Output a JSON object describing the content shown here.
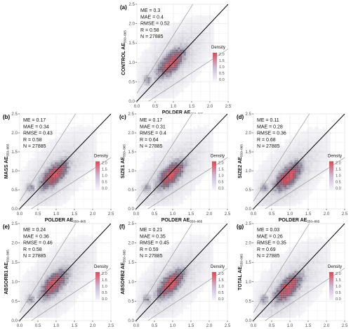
{
  "figure": {
    "legend_title": "Density",
    "legend_ticks": [
      "2.0",
      "1.5",
      "1.0",
      "0.5",
      "0.0"
    ],
    "x_label": "POLDER AE",
    "x_label_sub": "550–865",
    "axis_ticks": [
      "0.0",
      "0.5",
      "1.0",
      "1.5",
      "2.0",
      "2.5"
    ],
    "colors": {
      "density_low": "#dfe0ef",
      "density_mid": "#3d3452",
      "density_high": "#e8424e",
      "grid": "#ebebeb",
      "one_to_one_line": "#000000",
      "bound_lines": "#9a9a9a"
    }
  },
  "chart_data": [
    {
      "type": "heatmap",
      "panel": "(a)",
      "ylabel": "CONTROL AE",
      "ylabel_sub": "550–865",
      "xlabel": "POLDER AE",
      "xlim": [
        0,
        2.5
      ],
      "ylim": [
        0,
        2.5
      ],
      "stats": [
        "ME = 0.3",
        "MAE = 0.4",
        "RMSE = 0.52",
        "R = 0.58",
        "N = 27885"
      ],
      "density_center": [
        0.95,
        1.0
      ],
      "legend": {
        "title": "Density",
        "range": [
          0,
          2.0
        ],
        "placement": "right"
      }
    },
    {
      "type": "heatmap",
      "panel": "(b)",
      "ylabel": "MASS AE",
      "ylabel_sub": "550–865",
      "xlabel": "POLDER AE",
      "xlim": [
        0,
        2.5
      ],
      "ylim": [
        0,
        2.5
      ],
      "stats": [
        "ME = 0.17",
        "MAE = 0.34",
        "RMSE = 0.43",
        "R = 0.58",
        "N = 27885"
      ],
      "density_center": [
        0.95,
        0.9
      ],
      "legend": {
        "title": "Density",
        "range": [
          0,
          2.0
        ],
        "placement": "right"
      }
    },
    {
      "type": "heatmap",
      "panel": "(c)",
      "ylabel": "SIZE1 AE",
      "ylabel_sub": "550–865",
      "xlabel": "POLDER AE",
      "xlim": [
        0,
        2.5
      ],
      "ylim": [
        0,
        2.5
      ],
      "stats": [
        "ME = 0.17",
        "MAE = 0.31",
        "RMSE = 0.4",
        "R = 0.64",
        "N = 27885"
      ],
      "density_center": [
        0.95,
        0.9
      ],
      "legend": {
        "title": "Density",
        "range": [
          0,
          2.0
        ],
        "placement": "right"
      }
    },
    {
      "type": "heatmap",
      "panel": "(d)",
      "ylabel": "SIZE2 AE",
      "ylabel_sub": "550–865",
      "xlabel": "POLDER AE",
      "xlim": [
        0,
        2.5
      ],
      "ylim": [
        0,
        2.5
      ],
      "stats": [
        "ME = 0.11",
        "MAE = 0.28",
        "RMSE = 0.36",
        "R = 0.68",
        "N = 27885"
      ],
      "density_center": [
        0.95,
        0.85
      ],
      "legend": {
        "title": "Density",
        "range": [
          0,
          2.0
        ],
        "placement": "right"
      }
    },
    {
      "type": "heatmap",
      "panel": "(e)",
      "ylabel": "ABSORB1 AE",
      "ylabel_sub": "550–865",
      "xlabel": "POLDER AE",
      "xlim": [
        0,
        2.5
      ],
      "ylim": [
        0,
        2.5
      ],
      "stats": [
        "ME = 0.24",
        "MAE = 0.36",
        "RMSE = 0.46",
        "R = 0.58",
        "N = 27885"
      ],
      "density_center": [
        0.95,
        0.95
      ],
      "legend": {
        "title": "Density",
        "range": [
          0,
          2.0
        ],
        "placement": "right"
      }
    },
    {
      "type": "heatmap",
      "panel": "(f)",
      "ylabel": "ABSORB2 AE",
      "ylabel_sub": "550–865",
      "xlabel": "POLDER AE",
      "xlim": [
        0,
        2.5
      ],
      "ylim": [
        0,
        2.5
      ],
      "stats": [
        "ME = 0.21",
        "MAE = 0.35",
        "RMSE = 0.45",
        "R = 0.59",
        "N = 27885"
      ],
      "density_center": [
        0.95,
        0.95
      ],
      "legend": {
        "title": "Density",
        "range": [
          0,
          2.0
        ],
        "placement": "right"
      }
    },
    {
      "type": "heatmap",
      "panel": "(g)",
      "ylabel": "TOTAL AE",
      "ylabel_sub": "550–865",
      "xlabel": "POLDER AE",
      "xlim": [
        0,
        2.5
      ],
      "ylim": [
        0,
        2.5
      ],
      "stats": [
        "ME = 0.03",
        "MAE = 0.26",
        "RMSE = 0.35",
        "R = 0.69",
        "N = 27885"
      ],
      "density_center": [
        0.95,
        0.85
      ],
      "legend": {
        "title": "Density",
        "range": [
          0,
          2.0
        ],
        "placement": "right"
      }
    }
  ]
}
